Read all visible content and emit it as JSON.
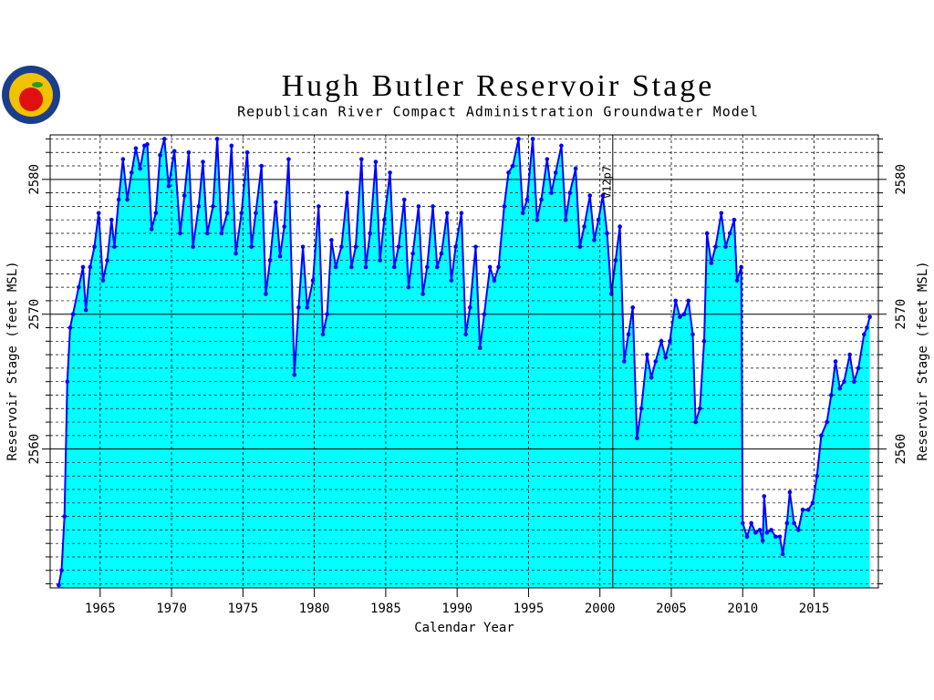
{
  "chart_data": {
    "type": "area",
    "title": "Hugh Butler Reservoir Stage",
    "subtitle": "Republican River Compact Administration Groundwater Model",
    "x_label": "Calendar Year",
    "y_label": "Reservoir Stage (feet MSL)",
    "color": "#0000ff",
    "fill_color": "#00ffff",
    "xlim": [
      1961.5,
      2019.5
    ],
    "ylim": [
      2549.7,
      2583.3
    ],
    "xticks": [
      1965,
      1970,
      1975,
      1980,
      1985,
      1990,
      1995,
      2000,
      2005,
      2010,
      2015
    ],
    "yticks": [
      2560,
      2570,
      2580
    ],
    "minor_yticks": [
      2550,
      2551,
      2552,
      2553,
      2554,
      2555,
      2556,
      2557,
      2558,
      2559,
      2561,
      2562,
      2563,
      2564,
      2565,
      2566,
      2567,
      2568,
      2569,
      2571,
      2572,
      2573,
      2574,
      2575,
      2576,
      2577,
      2578,
      2579,
      2581,
      2582,
      2583
    ],
    "grid": true,
    "annotation": {
      "text": "V12p7",
      "x": 2000.9
    },
    "x": [
      1962.1,
      1962.3,
      1962.5,
      1962.7,
      1962.9,
      1963.1,
      1963.5,
      1963.8,
      1964.0,
      1964.3,
      1964.6,
      1964.9,
      1965.2,
      1965.5,
      1965.8,
      1966.0,
      1966.3,
      1966.6,
      1966.9,
      1967.2,
      1967.5,
      1967.8,
      1968.1,
      1968.3,
      1968.6,
      1968.9,
      1969.2,
      1969.5,
      1969.8,
      1970.2,
      1970.6,
      1970.9,
      1971.2,
      1971.5,
      1971.9,
      1972.2,
      1972.5,
      1972.9,
      1973.2,
      1973.5,
      1973.9,
      1974.2,
      1974.5,
      1974.9,
      1975.3,
      1975.6,
      1975.9,
      1976.3,
      1976.6,
      1976.9,
      1977.3,
      1977.6,
      1977.9,
      1978.2,
      1978.6,
      1978.9,
      1979.2,
      1979.5,
      1979.9,
      1980.3,
      1980.6,
      1980.9,
      1981.2,
      1981.5,
      1981.9,
      1982.3,
      1982.6,
      1982.9,
      1983.3,
      1983.6,
      1983.9,
      1984.3,
      1984.6,
      1984.9,
      1985.3,
      1985.6,
      1985.9,
      1986.3,
      1986.6,
      1986.9,
      1987.3,
      1987.6,
      1987.9,
      1988.3,
      1988.6,
      1988.9,
      1989.3,
      1989.6,
      1989.9,
      1990.3,
      1990.6,
      1990.9,
      1991.3,
      1991.6,
      1991.9,
      1992.3,
      1992.6,
      1992.9,
      1993.3,
      1993.6,
      1993.9,
      1994.3,
      1994.6,
      1994.9,
      1995.3,
      1995.6,
      1995.9,
      1996.3,
      1996.6,
      1996.9,
      1997.3,
      1997.6,
      1997.9,
      1998.3,
      1998.6,
      1998.9,
      1999.3,
      1999.6,
      1999.9,
      2000.2,
      2000.5,
      2000.8,
      2001.1,
      2001.4,
      2001.7,
      2002.0,
      2002.3,
      2002.6,
      2002.9,
      2003.3,
      2003.6,
      2003.9,
      2004.3,
      2004.6,
      2004.9,
      2005.3,
      2005.6,
      2005.9,
      2006.2,
      2006.5,
      2006.7,
      2007.0,
      2007.3,
      2007.5,
      2007.8,
      2008.1,
      2008.5,
      2008.8,
      2009.1,
      2009.4,
      2009.6,
      2009.9,
      2010.0,
      2010.3,
      2010.6,
      2010.9,
      2011.2,
      2011.4,
      2011.5,
      2011.7,
      2012.0,
      2012.3,
      2012.6,
      2012.8,
      2013.1,
      2013.3,
      2013.6,
      2013.9,
      2014.2,
      2014.6,
      2014.9,
      2015.2,
      2015.5,
      2015.9,
      2016.2,
      2016.5,
      2016.8,
      2017.1,
      2017.5,
      2017.8,
      2018.1,
      2018.5,
      2018.7,
      2018.9
    ],
    "values": [
      2549.9,
      2551,
      2555,
      2565,
      2569,
      2570,
      2572,
      2573.5,
      2570.3,
      2573.5,
      2575,
      2577.5,
      2572.5,
      2574,
      2577,
      2575,
      2578.5,
      2581.5,
      2578.5,
      2580.5,
      2582.3,
      2580.8,
      2582.5,
      2582.6,
      2576.3,
      2577.5,
      2581.8,
      2583,
      2579.5,
      2582.1,
      2576,
      2578.8,
      2582,
      2575,
      2578,
      2581.3,
      2576,
      2578,
      2583,
      2576,
      2577.5,
      2582.5,
      2574.5,
      2577.5,
      2582,
      2575,
      2577.5,
      2581,
      2571.5,
      2574,
      2578.3,
      2574.3,
      2576.5,
      2581.5,
      2565.5,
      2570.5,
      2575,
      2570.5,
      2572.5,
      2578,
      2568.5,
      2570,
      2575.5,
      2573.5,
      2575,
      2579,
      2573.5,
      2575,
      2581.5,
      2573.5,
      2576,
      2581.3,
      2574,
      2577,
      2580.5,
      2573.5,
      2575,
      2578.5,
      2572,
      2574.5,
      2578,
      2571.5,
      2573.5,
      2578,
      2573.5,
      2574.5,
      2577.5,
      2572.5,
      2575,
      2577.5,
      2568.5,
      2570.5,
      2575,
      2567.5,
      2570,
      2573.5,
      2572.5,
      2573.5,
      2578,
      2580.5,
      2581,
      2583,
      2577.5,
      2578.5,
      2583,
      2577,
      2578.5,
      2581.5,
      2579,
      2580.5,
      2582.5,
      2577,
      2579,
      2580.8,
      2575,
      2576.5,
      2578.8,
      2575.5,
      2577,
      2578.8,
      2576,
      2571.5,
      2574,
      2576.5,
      2566.5,
      2568.5,
      2570.5,
      2560.8,
      2563,
      2567,
      2565.3,
      2566.5,
      2568,
      2566.8,
      2568,
      2571,
      2569.8,
      2570,
      2571,
      2568.5,
      2562,
      2563,
      2568,
      2576,
      2573.8,
      2575,
      2577.5,
      2575,
      2576,
      2577,
      2572.5,
      2573.5,
      2554.5,
      2553.5,
      2554.5,
      2553.8,
      2554,
      2553.2,
      2556.5,
      2553.8,
      2554,
      2553.5,
      2553.5,
      2552.2,
      2554.5,
      2556.8,
      2554.5,
      2554,
      2555.5,
      2555.5,
      2556,
      2558,
      2561,
      2562,
      2564,
      2566.5,
      2564.5,
      2565,
      2567,
      2565,
      2566,
      2568.5,
      2569,
      2569.8
    ]
  }
}
